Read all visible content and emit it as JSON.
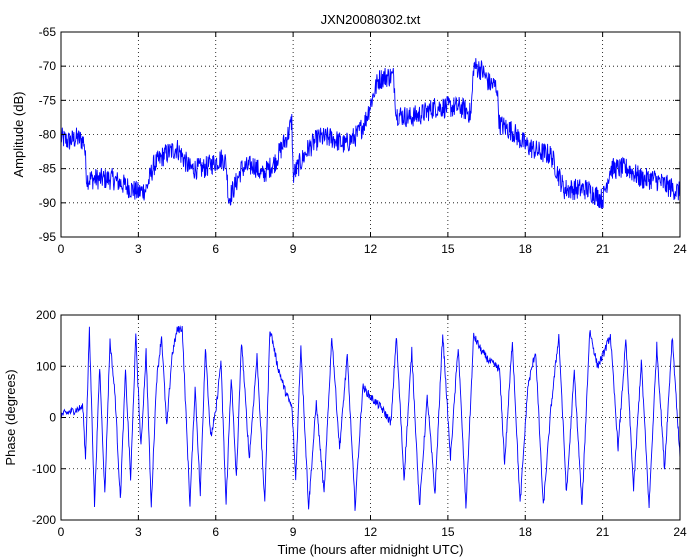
{
  "chart_data": [
    {
      "type": "line",
      "title": "JXN20080302.txt",
      "xlabel": "",
      "ylabel": "Amplitude (dB)",
      "xlim": [
        0,
        24
      ],
      "ylim": [
        -95,
        -65
      ],
      "xticks": [
        0,
        3,
        6,
        9,
        12,
        15,
        18,
        21,
        24
      ],
      "yticks": [
        -95,
        -90,
        -85,
        -80,
        -75,
        -70,
        -65
      ],
      "grid": true,
      "color": "#0000ff",
      "series": [
        {
          "x": [
            0.0,
            0.3,
            0.6,
            0.9,
            1.0,
            1.5,
            2.0,
            2.5,
            3.0,
            3.3,
            3.6,
            4.0,
            4.5,
            5.0,
            5.5,
            6.0,
            6.2,
            6.4,
            6.5,
            6.8,
            7.0,
            7.5,
            7.8,
            8.3,
            8.8,
            8.95,
            9.0,
            9.3,
            9.6,
            10.0,
            10.5,
            11.0,
            11.5,
            11.8,
            12.0,
            12.3,
            12.6,
            12.9,
            13.0,
            13.5,
            14.0,
            14.5,
            15.0,
            15.5,
            15.9,
            16.0,
            16.3,
            16.6,
            16.9,
            17.0,
            17.5,
            18.0,
            18.5,
            19.0,
            19.5,
            20.0,
            20.4,
            20.8,
            21.0,
            21.3,
            21.6,
            22.0,
            22.5,
            23.0,
            23.5,
            24.0
          ],
          "y": [
            -80.5,
            -81.0,
            -80.5,
            -81.0,
            -86.5,
            -86.5,
            -86.5,
            -87.5,
            -88.5,
            -88.0,
            -84.5,
            -83.0,
            -82.0,
            -85.0,
            -85.0,
            -84.0,
            -83.5,
            -84.0,
            -89.5,
            -87.0,
            -85.0,
            -84.5,
            -86.0,
            -84.0,
            -80.0,
            -78.0,
            -86.0,
            -84.0,
            -82.0,
            -80.5,
            -80.5,
            -81.5,
            -80.0,
            -78.0,
            -75.5,
            -72.0,
            -71.5,
            -71.5,
            -77.0,
            -77.5,
            -77.0,
            -76.0,
            -76.0,
            -76.0,
            -77.0,
            -70.0,
            -70.5,
            -72.5,
            -73.0,
            -78.5,
            -79.5,
            -81.5,
            -82.5,
            -83.0,
            -88.0,
            -88.0,
            -88.0,
            -89.0,
            -89.5,
            -85.0,
            -85.0,
            -85.0,
            -86.5,
            -86.5,
            -87.5,
            -88.5
          ]
        }
      ]
    },
    {
      "type": "line",
      "title": "",
      "xlabel": "Time (hours after midnight UTC)",
      "ylabel": "Phase (degrees)",
      "xlim": [
        0,
        24
      ],
      "ylim": [
        -200,
        200
      ],
      "xticks": [
        0,
        3,
        6,
        9,
        12,
        15,
        18,
        21,
        24
      ],
      "yticks": [
        -200,
        -100,
        0,
        100,
        200
      ],
      "grid": true,
      "color": "#0000ff",
      "series": [
        {
          "x": [
            0.0,
            0.3,
            0.6,
            0.85,
            0.95,
            1.1,
            1.3,
            1.5,
            1.7,
            1.9,
            2.1,
            2.3,
            2.5,
            2.7,
            2.9,
            3.1,
            3.3,
            3.5,
            3.7,
            3.9,
            4.1,
            4.3,
            4.5,
            4.7,
            5.0,
            5.2,
            5.4,
            5.6,
            5.8,
            6.0,
            6.2,
            6.4,
            6.6,
            6.8,
            7.0,
            7.3,
            7.6,
            7.9,
            8.1,
            8.4,
            8.7,
            8.95,
            9.1,
            9.3,
            9.6,
            9.9,
            10.2,
            10.5,
            10.8,
            11.1,
            11.4,
            11.7,
            12.0,
            12.4,
            12.8,
            13.0,
            13.3,
            13.6,
            13.9,
            14.2,
            14.5,
            14.8,
            15.1,
            15.4,
            15.7,
            16.0,
            16.3,
            16.6,
            17.0,
            17.2,
            17.5,
            17.8,
            18.1,
            18.4,
            18.7,
            19.0,
            19.3,
            19.6,
            19.9,
            20.2,
            20.5,
            20.8,
            21.0,
            21.3,
            21.6,
            21.9,
            22.2,
            22.5,
            22.8,
            23.1,
            23.4,
            23.7,
            24.0
          ],
          "y": [
            5,
            10,
            15,
            20,
            -80,
            170,
            -170,
            100,
            -150,
            150,
            40,
            -160,
            90,
            -120,
            160,
            -60,
            130,
            -175,
            70,
            160,
            -20,
            120,
            170,
            175,
            -170,
            60,
            -150,
            140,
            -40,
            10,
            110,
            -170,
            80,
            -120,
            150,
            -80,
            120,
            -170,
            175,
            100,
            50,
            20,
            -120,
            140,
            -175,
            30,
            -150,
            160,
            -60,
            120,
            -175,
            60,
            40,
            20,
            -10,
            160,
            -120,
            130,
            -175,
            40,
            -150,
            165,
            -80,
            140,
            -175,
            160,
            130,
            110,
            95,
            -90,
            150,
            -170,
            60,
            130,
            -175,
            20,
            160,
            -150,
            90,
            -175,
            170,
            100,
            120,
            160,
            -60,
            150,
            -140,
            110,
            -175,
            140,
            -100,
            160,
            -80
          ]
        }
      ]
    }
  ]
}
